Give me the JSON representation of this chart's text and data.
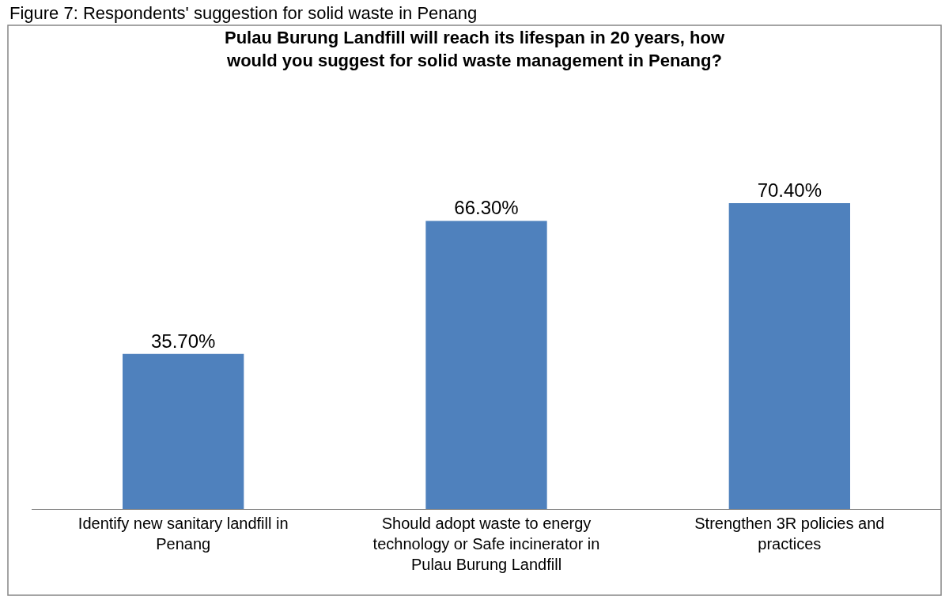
{
  "chart_data": {
    "type": "bar",
    "title": "Pulau Burung Landfill will reach its lifespan in 20 years, how would you suggest for solid waste management in Penang?",
    "categories": [
      "Identify new sanitary landfill in Penang",
      "Should adopt waste to energy technology or Safe incinerator in Pulau Burung Landfill",
      "Strengthen 3R policies and practices"
    ],
    "values": [
      35.7,
      66.3,
      70.4
    ],
    "value_labels": [
      "35.70%",
      "66.30%",
      "70.40%"
    ],
    "color": "#4f81bd",
    "annotations": [
      "Figure 7: Respondents' suggestion for solid waste in Penang"
    ]
  }
}
